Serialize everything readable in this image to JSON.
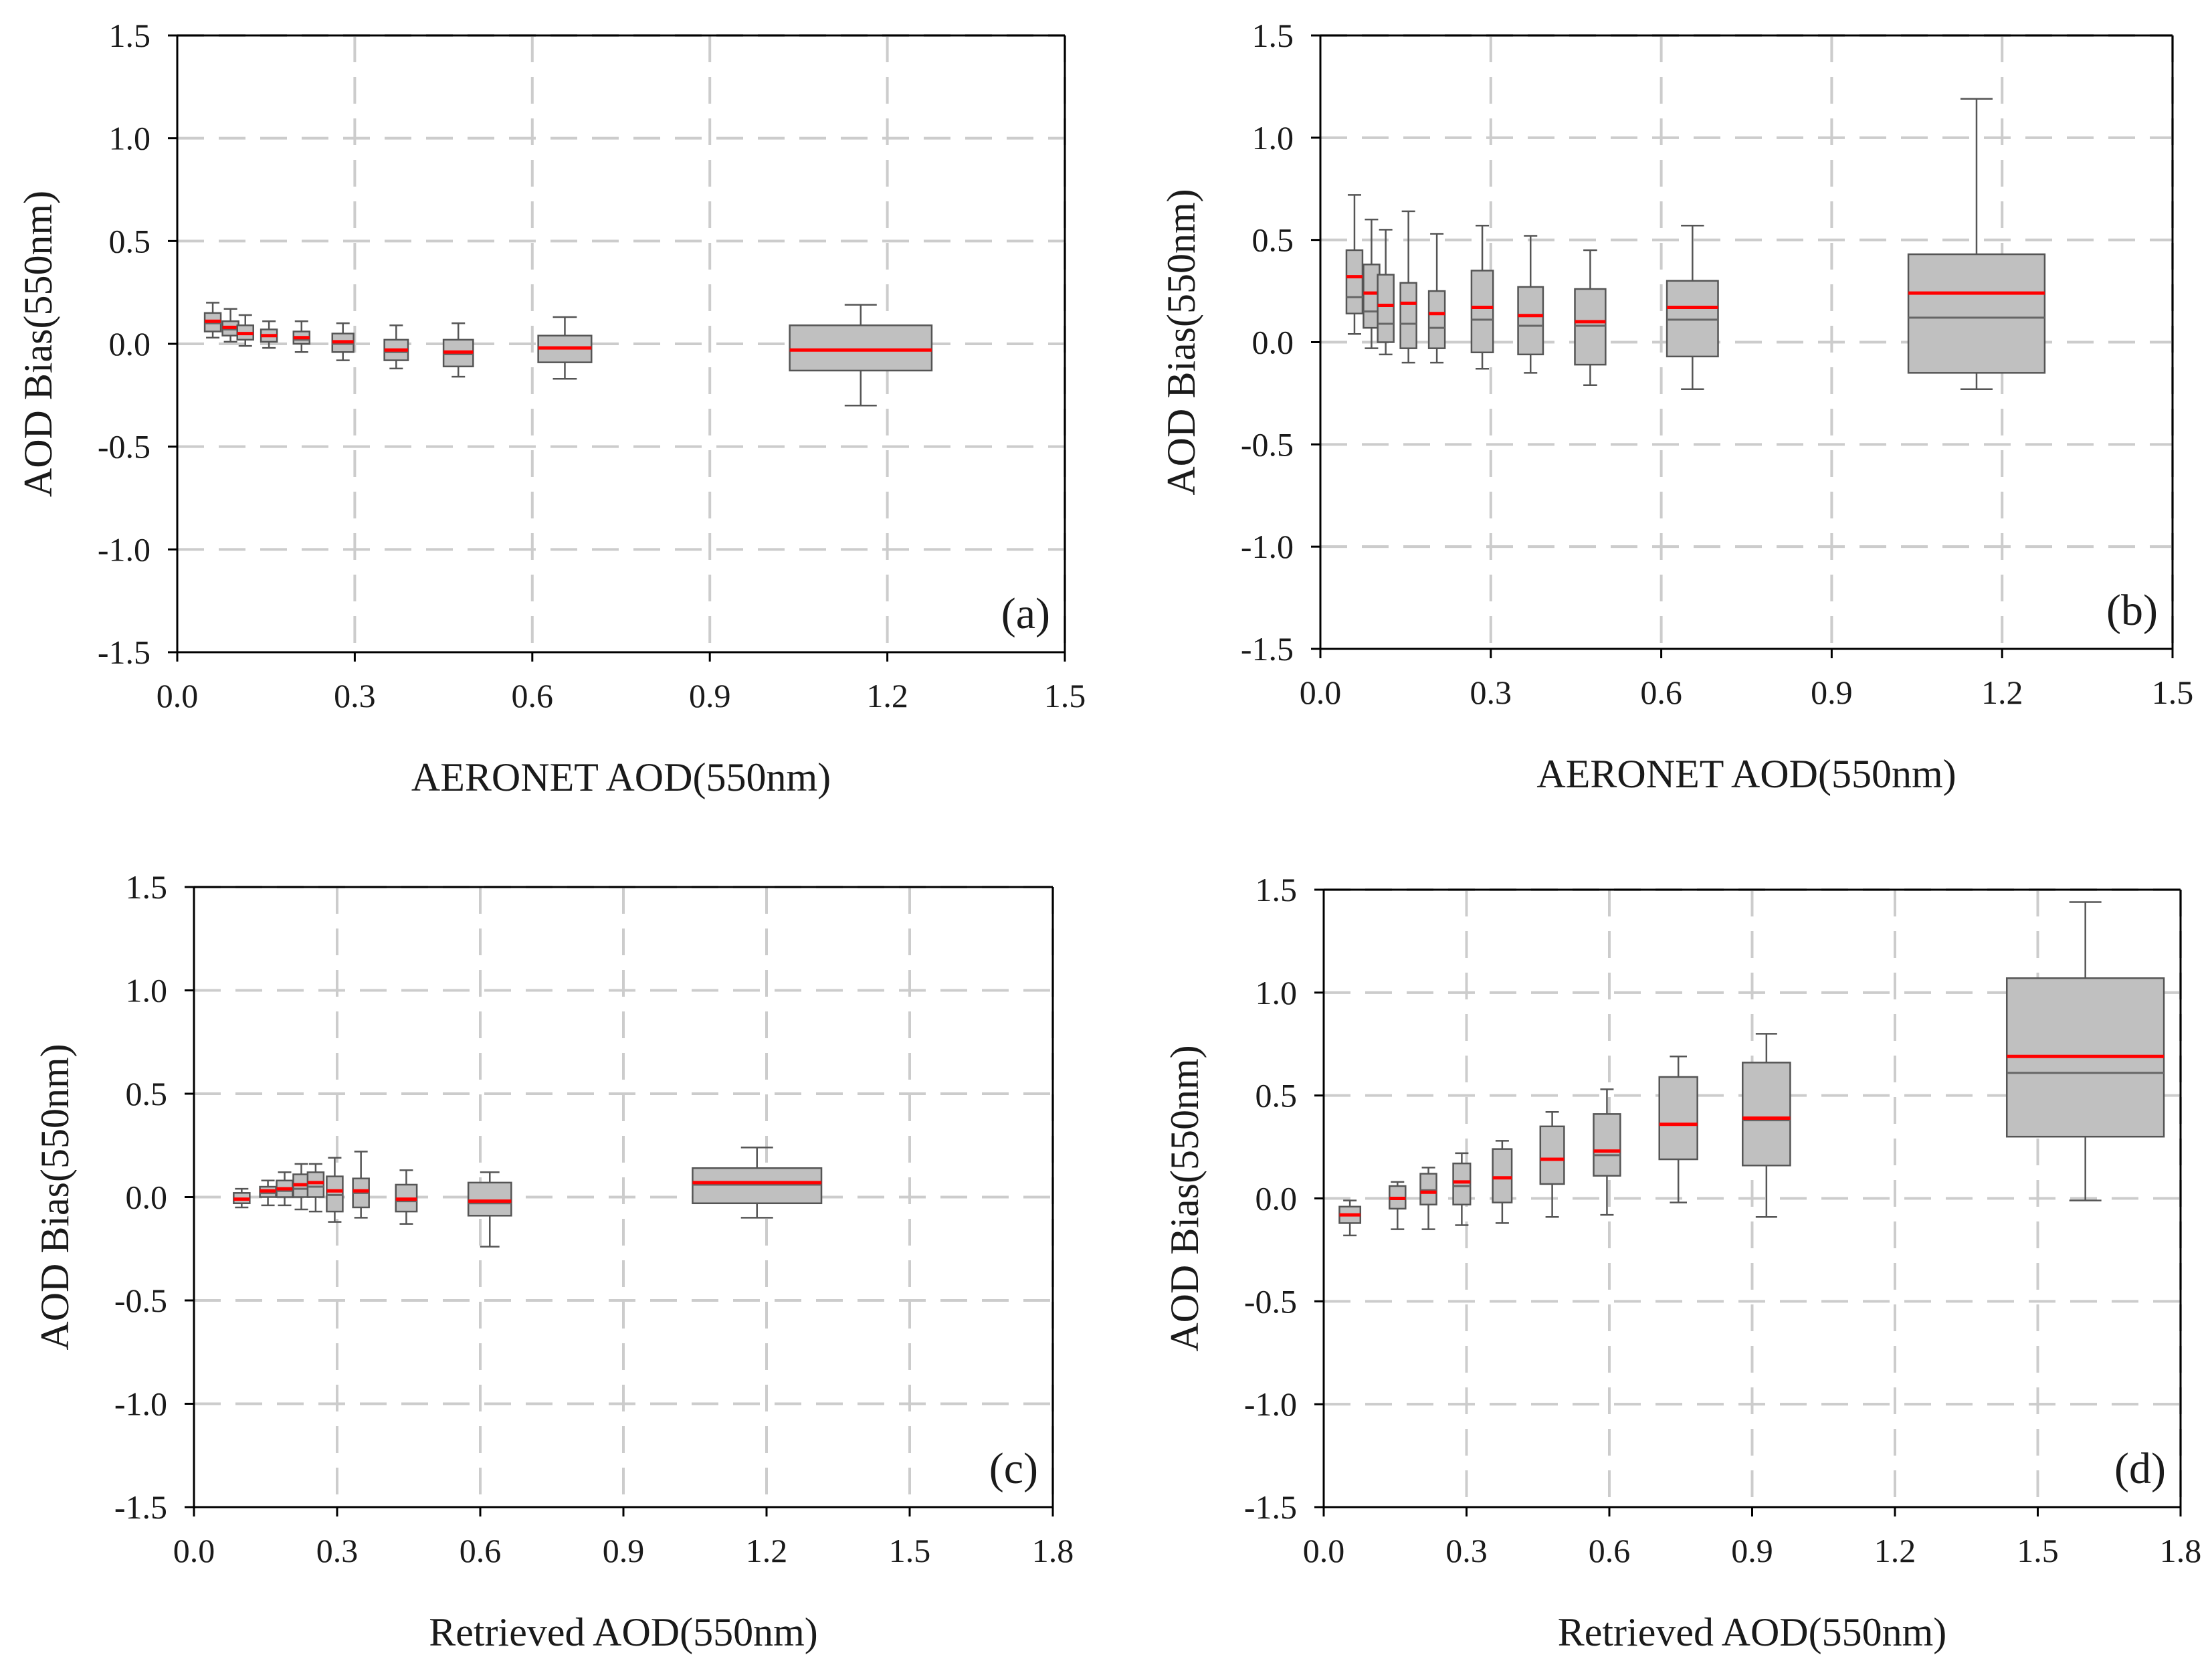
{
  "figure": {
    "colors": {
      "box_fill": "#c0c0c0",
      "box_stroke": "#555555",
      "mean_line": "#ff0000",
      "median_line": "#666666",
      "grid": "#cccccc",
      "axis": "#000000"
    }
  },
  "chart_data": [
    {
      "type": "box",
      "panel_label": "(a)",
      "title": "",
      "xlabel": "AERONET AOD(550nm)",
      "ylabel": "AOD Bias(550nm)",
      "xlim": [
        0.0,
        1.5
      ],
      "ylim": [
        -1.5,
        1.5
      ],
      "xticks": [
        "0.0",
        "0.3",
        "0.6",
        "0.9",
        "1.2",
        "1.5"
      ],
      "yticks": [
        "1.5",
        "1.0",
        "0.5",
        "0.0",
        "-0.5",
        "-1.0",
        "-1.5"
      ],
      "grid": true,
      "boxes": [
        {
          "x": 0.06,
          "half_width": 0.008,
          "whisker_low": 0.03,
          "q1": 0.06,
          "median": 0.1,
          "q3": 0.15,
          "whisker_high": 0.2,
          "mean": 0.11
        },
        {
          "x": 0.09,
          "half_width": 0.008,
          "whisker_low": 0.01,
          "q1": 0.04,
          "median": 0.07,
          "q3": 0.11,
          "whisker_high": 0.17,
          "mean": 0.08
        },
        {
          "x": 0.115,
          "half_width": 0.008,
          "whisker_low": -0.01,
          "q1": 0.02,
          "median": 0.05,
          "q3": 0.09,
          "whisker_high": 0.14,
          "mean": 0.05
        },
        {
          "x": 0.155,
          "half_width": 0.01,
          "whisker_low": -0.02,
          "q1": 0.01,
          "median": 0.04,
          "q3": 0.07,
          "whisker_high": 0.11,
          "mean": 0.04
        },
        {
          "x": 0.21,
          "half_width": 0.012,
          "whisker_low": -0.04,
          "q1": 0.0,
          "median": 0.02,
          "q3": 0.06,
          "whisker_high": 0.11,
          "mean": 0.03
        },
        {
          "x": 0.28,
          "half_width": 0.018,
          "whisker_low": -0.08,
          "q1": -0.04,
          "median": 0.0,
          "q3": 0.05,
          "whisker_high": 0.1,
          "mean": 0.01
        },
        {
          "x": 0.37,
          "half_width": 0.02,
          "whisker_low": -0.12,
          "q1": -0.08,
          "median": -0.04,
          "q3": 0.02,
          "whisker_high": 0.09,
          "mean": -0.03
        },
        {
          "x": 0.475,
          "half_width": 0.025,
          "whisker_low": -0.16,
          "q1": -0.11,
          "median": -0.05,
          "q3": 0.02,
          "whisker_high": 0.1,
          "mean": -0.04
        },
        {
          "x": 0.655,
          "half_width": 0.045,
          "whisker_low": -0.17,
          "q1": -0.09,
          "median": -0.02,
          "q3": 0.04,
          "whisker_high": 0.13,
          "mean": -0.02
        },
        {
          "x": 1.155,
          "half_width": 0.12,
          "whisker_low": -0.3,
          "q1": -0.13,
          "median": -0.03,
          "q3": 0.09,
          "whisker_high": 0.19,
          "mean": -0.03
        }
      ]
    },
    {
      "type": "box",
      "panel_label": "(b)",
      "title": "",
      "xlabel": "AERONET AOD(550nm)",
      "ylabel": "AOD Bias(550nm)",
      "xlim": [
        0.0,
        1.5
      ],
      "ylim": [
        -1.5,
        1.5
      ],
      "xticks": [
        "0.0",
        "0.3",
        "0.6",
        "0.9",
        "1.2",
        "1.5"
      ],
      "yticks": [
        "1.5",
        "1.0",
        "0.5",
        "0.0",
        "-0.5",
        "-1.0",
        "-1.5"
      ],
      "grid": true,
      "boxes": [
        {
          "x": 0.06,
          "half_width": 0.008,
          "whisker_low": 0.04,
          "q1": 0.14,
          "median": 0.22,
          "q3": 0.45,
          "whisker_high": 0.72,
          "mean": 0.32
        },
        {
          "x": 0.09,
          "half_width": 0.008,
          "whisker_low": -0.03,
          "q1": 0.07,
          "median": 0.15,
          "q3": 0.38,
          "whisker_high": 0.6,
          "mean": 0.24
        },
        {
          "x": 0.115,
          "half_width": 0.008,
          "whisker_low": -0.06,
          "q1": 0.0,
          "median": 0.09,
          "q3": 0.33,
          "whisker_high": 0.55,
          "mean": 0.18
        },
        {
          "x": 0.155,
          "half_width": 0.01,
          "whisker_low": -0.1,
          "q1": -0.03,
          "median": 0.09,
          "q3": 0.29,
          "whisker_high": 0.64,
          "mean": 0.19
        },
        {
          "x": 0.205,
          "half_width": 0.013,
          "whisker_low": -0.1,
          "q1": -0.03,
          "median": 0.07,
          "q3": 0.25,
          "whisker_high": 0.53,
          "mean": 0.14
        },
        {
          "x": 0.285,
          "half_width": 0.019,
          "whisker_low": -0.13,
          "q1": -0.05,
          "median": 0.11,
          "q3": 0.35,
          "whisker_high": 0.57,
          "mean": 0.17
        },
        {
          "x": 0.37,
          "half_width": 0.022,
          "whisker_low": -0.15,
          "q1": -0.06,
          "median": 0.08,
          "q3": 0.27,
          "whisker_high": 0.52,
          "mean": 0.13
        },
        {
          "x": 0.475,
          "half_width": 0.027,
          "whisker_low": -0.21,
          "q1": -0.11,
          "median": 0.08,
          "q3": 0.26,
          "whisker_high": 0.45,
          "mean": 0.1
        },
        {
          "x": 0.655,
          "half_width": 0.045,
          "whisker_low": -0.23,
          "q1": -0.07,
          "median": 0.11,
          "q3": 0.3,
          "whisker_high": 0.57,
          "mean": 0.17
        },
        {
          "x": 1.155,
          "half_width": 0.12,
          "whisker_low": -0.23,
          "q1": -0.15,
          "median": 0.12,
          "q3": 0.43,
          "whisker_high": 1.19,
          "mean": 0.24
        }
      ]
    },
    {
      "type": "box",
      "panel_label": "(c)",
      "title": "",
      "xlabel": "Retrieved AOD(550nm)",
      "ylabel": "AOD Bias(550nm)",
      "xlim": [
        0.0,
        1.8
      ],
      "ylim": [
        -1.5,
        1.5
      ],
      "xticks": [
        "0.0",
        "0.3",
        "0.6",
        "0.9",
        "1.2",
        "1.5",
        "1.8"
      ],
      "yticks": [
        "1.5",
        "1.0",
        "0.5",
        "0.0",
        "-0.5",
        "-1.0",
        "-1.5"
      ],
      "grid": true,
      "boxes": [
        {
          "x": 0.1,
          "half_width": 0.01,
          "whisker_low": -0.05,
          "q1": -0.03,
          "median": -0.01,
          "q3": 0.02,
          "whisker_high": 0.04,
          "mean": -0.01
        },
        {
          "x": 0.155,
          "half_width": 0.01,
          "whisker_low": -0.04,
          "q1": 0.0,
          "median": 0.02,
          "q3": 0.05,
          "whisker_high": 0.08,
          "mean": 0.03
        },
        {
          "x": 0.19,
          "half_width": 0.01,
          "whisker_low": -0.04,
          "q1": 0.0,
          "median": 0.03,
          "q3": 0.08,
          "whisker_high": 0.12,
          "mean": 0.04
        },
        {
          "x": 0.225,
          "half_width": 0.01,
          "whisker_low": -0.06,
          "q1": 0.0,
          "median": 0.04,
          "q3": 0.11,
          "whisker_high": 0.16,
          "mean": 0.06
        },
        {
          "x": 0.255,
          "half_width": 0.01,
          "whisker_low": -0.07,
          "q1": 0.0,
          "median": 0.05,
          "q3": 0.12,
          "whisker_high": 0.16,
          "mean": 0.07
        },
        {
          "x": 0.295,
          "half_width": 0.01,
          "whisker_low": -0.12,
          "q1": -0.07,
          "median": 0.01,
          "q3": 0.1,
          "whisker_high": 0.19,
          "mean": 0.03
        },
        {
          "x": 0.35,
          "half_width": 0.013,
          "whisker_low": -0.1,
          "q1": -0.05,
          "median": 0.02,
          "q3": 0.09,
          "whisker_high": 0.22,
          "mean": 0.03
        },
        {
          "x": 0.445,
          "half_width": 0.022,
          "whisker_low": -0.13,
          "q1": -0.07,
          "median": -0.02,
          "q3": 0.06,
          "whisker_high": 0.13,
          "mean": -0.01
        },
        {
          "x": 0.62,
          "half_width": 0.045,
          "whisker_low": -0.24,
          "q1": -0.09,
          "median": -0.03,
          "q3": 0.07,
          "whisker_high": 0.12,
          "mean": -0.02
        },
        {
          "x": 1.18,
          "half_width": 0.135,
          "whisker_low": -0.1,
          "q1": -0.03,
          "median": 0.06,
          "q3": 0.14,
          "whisker_high": 0.24,
          "mean": 0.07
        }
      ]
    },
    {
      "type": "box",
      "panel_label": "(d)",
      "title": "",
      "xlabel": "Retrieved AOD(550nm)",
      "ylabel": "AOD Bias(550nm)",
      "xlim": [
        0.0,
        1.8
      ],
      "ylim": [
        -1.5,
        1.5
      ],
      "xticks": [
        "0.0",
        "0.3",
        "0.6",
        "0.9",
        "1.2",
        "1.5",
        "1.8"
      ],
      "yticks": [
        "1.5",
        "1.0",
        "0.5",
        "0.0",
        "-0.5",
        "-1.0",
        "-1.5"
      ],
      "grid": true,
      "boxes": [
        {
          "x": 0.055,
          "half_width": 0.022,
          "whisker_low": -0.18,
          "q1": -0.12,
          "median": -0.08,
          "q3": -0.04,
          "whisker_high": -0.01,
          "mean": -0.08
        },
        {
          "x": 0.155,
          "half_width": 0.015,
          "whisker_low": -0.15,
          "q1": -0.05,
          "median": 0.0,
          "q3": 0.06,
          "whisker_high": 0.08,
          "mean": 0.0
        },
        {
          "x": 0.22,
          "half_width": 0.015,
          "whisker_low": -0.15,
          "q1": -0.03,
          "median": 0.04,
          "q3": 0.12,
          "whisker_high": 0.15,
          "mean": 0.03
        },
        {
          "x": 0.29,
          "half_width": 0.018,
          "whisker_low": -0.13,
          "q1": -0.03,
          "median": 0.06,
          "q3": 0.17,
          "whisker_high": 0.22,
          "mean": 0.08
        },
        {
          "x": 0.375,
          "half_width": 0.02,
          "whisker_low": -0.12,
          "q1": -0.02,
          "median": 0.1,
          "q3": 0.24,
          "whisker_high": 0.28,
          "mean": 0.1
        },
        {
          "x": 0.48,
          "half_width": 0.025,
          "whisker_low": -0.09,
          "q1": 0.07,
          "median": 0.19,
          "q3": 0.35,
          "whisker_high": 0.42,
          "mean": 0.19
        },
        {
          "x": 0.595,
          "half_width": 0.028,
          "whisker_low": -0.08,
          "q1": 0.11,
          "median": 0.21,
          "q3": 0.41,
          "whisker_high": 0.53,
          "mean": 0.23
        },
        {
          "x": 0.745,
          "half_width": 0.04,
          "whisker_low": -0.02,
          "q1": 0.19,
          "median": 0.36,
          "q3": 0.59,
          "whisker_high": 0.69,
          "mean": 0.36
        },
        {
          "x": 0.93,
          "half_width": 0.05,
          "whisker_low": -0.09,
          "q1": 0.16,
          "median": 0.38,
          "q3": 0.66,
          "whisker_high": 0.8,
          "mean": 0.39
        },
        {
          "x": 1.6,
          "half_width": 0.165,
          "whisker_low": -0.01,
          "q1": 0.3,
          "median": 0.61,
          "q3": 1.07,
          "whisker_high": 1.44,
          "mean": 0.69
        }
      ]
    }
  ]
}
